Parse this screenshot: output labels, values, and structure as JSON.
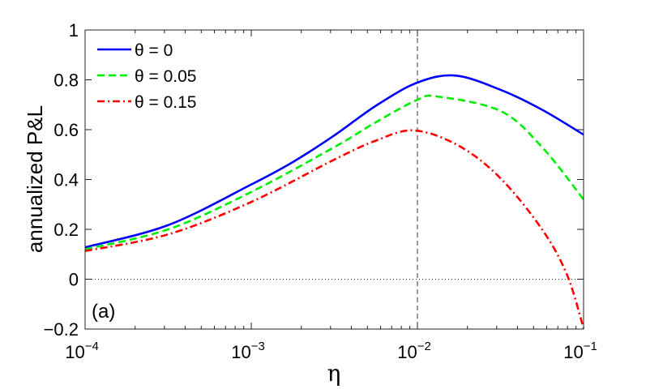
{
  "chart_data": {
    "type": "line",
    "xscale": "log",
    "xlabel": "η",
    "ylabel": "annualized P&L",
    "xlim": [
      0.0001,
      0.1
    ],
    "ylim": [
      -0.2,
      1
    ],
    "x_ticks": [
      {
        "base": "10",
        "exp": "−4",
        "v": -4
      },
      {
        "base": "10",
        "exp": "−3",
        "v": -3
      },
      {
        "base": "10",
        "exp": "−2",
        "v": -2
      },
      {
        "base": "10",
        "exp": "−1",
        "v": -1
      }
    ],
    "y_ticks": [
      {
        "label": "−0.2",
        "v": -0.2
      },
      {
        "label": "0",
        "v": 0
      },
      {
        "label": "0.2",
        "v": 0.2
      },
      {
        "label": "0.4",
        "v": 0.4
      },
      {
        "label": "0.6",
        "v": 0.6
      },
      {
        "label": "0.8",
        "v": 0.8
      },
      {
        "label": "1",
        "v": 1
      }
    ],
    "annotation": "(a)",
    "reference_lines": {
      "vertical_x": 0.01,
      "horizontal_y": 0
    },
    "legend_position": "top-left",
    "series": [
      {
        "name": "θ = 0",
        "color": "#0000ff",
        "style": "solid",
        "log10_x": [
          -4,
          -3.5,
          -3,
          -2.75,
          -2.5,
          -2.25,
          -2,
          -1.77,
          -1.5,
          -1.25,
          -1
        ],
        "y": [
          0.128,
          0.217,
          0.38,
          0.47,
          0.577,
          0.696,
          0.789,
          0.817,
          0.76,
          0.68,
          0.58
        ]
      },
      {
        "name": "θ = 0.05",
        "color": "#00ee00",
        "style": "dashed",
        "log10_x": [
          -4,
          -3.5,
          -3,
          -2.5,
          -2.25,
          -2,
          -1.88,
          -1.5,
          -1.25,
          -1
        ],
        "y": [
          0.12,
          0.2,
          0.35,
          0.53,
          0.63,
          0.72,
          0.733,
          0.675,
          0.53,
          0.32
        ]
      },
      {
        "name": "θ = 0.15",
        "color": "#ff0000",
        "style": "dashdot",
        "log10_x": [
          -4,
          -3.5,
          -3,
          -2.5,
          -2.25,
          -2.02,
          -1.75,
          -1.5,
          -1.25,
          -1.1,
          -1
        ],
        "y": [
          0.113,
          0.18,
          0.31,
          0.48,
          0.556,
          0.597,
          0.535,
          0.405,
          0.2,
          0.018,
          -0.197
        ]
      }
    ]
  }
}
